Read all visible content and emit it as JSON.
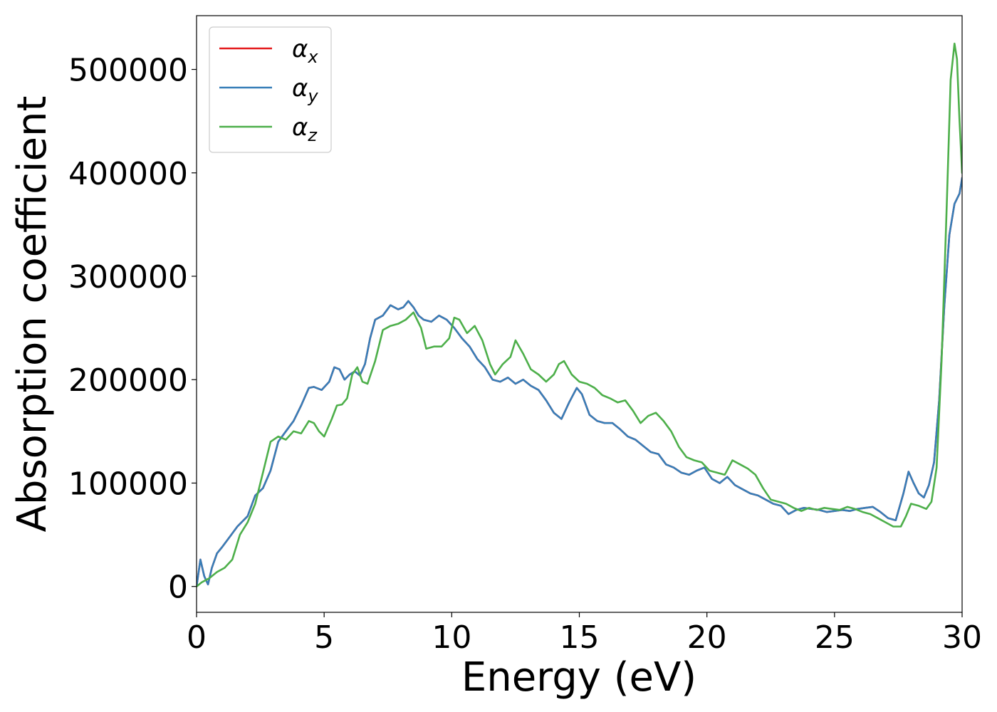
{
  "chart_data": {
    "type": "line",
    "title": "",
    "xlabel": "Energy (eV)",
    "ylabel": "Absorption coefficient",
    "xlim": [
      0,
      30
    ],
    "ylim": [
      -25000,
      552000
    ],
    "xticks": [
      0,
      5,
      10,
      15,
      20,
      25,
      30
    ],
    "xtick_labels": [
      "0",
      "5",
      "10",
      "15",
      "20",
      "25",
      "30"
    ],
    "yticks": [
      0,
      100000,
      200000,
      300000,
      400000,
      500000
    ],
    "ytick_labels": [
      "0",
      "100000",
      "200000",
      "300000",
      "400000",
      "500000"
    ],
    "grid": false,
    "legend_position": "top-left",
    "series": [
      {
        "name": "α_x",
        "label_symbol": "α",
        "label_sub": "x",
        "color": "#e41a1c",
        "x": [
          0,
          0.15,
          0.3,
          0.45,
          0.6,
          0.8,
          1.0,
          1.3,
          1.6,
          2.0,
          2.3,
          2.6,
          2.9,
          3.2,
          3.5,
          3.8,
          4.1,
          4.4,
          4.6,
          4.9,
          5.2,
          5.4,
          5.6,
          5.8,
          6.0,
          6.2,
          6.4,
          6.6,
          6.8,
          7.0,
          7.3,
          7.6,
          7.9,
          8.1,
          8.3,
          8.5,
          8.7,
          8.9,
          9.2,
          9.5,
          9.8,
          10.1,
          10.4,
          10.7,
          11.0,
          11.3,
          11.6,
          11.9,
          12.2,
          12.5,
          12.8,
          13.1,
          13.4,
          13.7,
          14.0,
          14.3,
          14.6,
          14.9,
          15.1,
          15.4,
          15.7,
          16.0,
          16.3,
          16.6,
          16.9,
          17.2,
          17.5,
          17.8,
          18.1,
          18.4,
          18.7,
          19.0,
          19.3,
          19.6,
          19.9,
          20.2,
          20.5,
          20.8,
          21.1,
          21.4,
          21.7,
          22.0,
          22.3,
          22.6,
          22.9,
          23.2,
          23.5,
          23.8,
          24.1,
          24.4,
          24.7,
          25.0,
          25.3,
          25.6,
          25.9,
          26.2,
          26.5,
          26.8,
          27.1,
          27.4,
          27.7,
          27.9,
          28.1,
          28.3,
          28.5,
          28.7,
          28.9,
          29.1,
          29.3,
          29.5,
          29.7,
          29.9,
          30.0
        ],
        "y": [
          0,
          26000,
          10000,
          2000,
          18000,
          32000,
          38000,
          48000,
          58000,
          68000,
          88000,
          95000,
          112000,
          140000,
          150000,
          160000,
          175000,
          192000,
          193000,
          190000,
          198000,
          212000,
          210000,
          200000,
          205000,
          208000,
          204000,
          215000,
          240000,
          258000,
          262000,
          272000,
          268000,
          270000,
          276000,
          270000,
          262000,
          258000,
          256000,
          262000,
          258000,
          250000,
          240000,
          232000,
          220000,
          212000,
          200000,
          198000,
          202000,
          196000,
          200000,
          194000,
          190000,
          180000,
          168000,
          162000,
          178000,
          192000,
          186000,
          166000,
          160000,
          158000,
          158000,
          152000,
          145000,
          142000,
          136000,
          130000,
          128000,
          118000,
          115000,
          110000,
          108000,
          112000,
          115000,
          104000,
          100000,
          106000,
          98000,
          94000,
          90000,
          88000,
          84000,
          80000,
          78000,
          70000,
          74000,
          76000,
          75000,
          74000,
          72000,
          73000,
          74000,
          73000,
          75000,
          76000,
          77000,
          72000,
          66000,
          64000,
          90000,
          111000,
          100000,
          90000,
          86000,
          98000,
          120000,
          180000,
          270000,
          340000,
          370000,
          380000,
          395000
        ]
      },
      {
        "name": "α_y",
        "label_symbol": "α",
        "label_sub": "y",
        "color": "#377eb8",
        "x": [
          0,
          0.15,
          0.3,
          0.45,
          0.6,
          0.8,
          1.0,
          1.3,
          1.6,
          2.0,
          2.3,
          2.6,
          2.9,
          3.2,
          3.5,
          3.8,
          4.1,
          4.4,
          4.6,
          4.9,
          5.2,
          5.4,
          5.6,
          5.8,
          6.0,
          6.2,
          6.4,
          6.6,
          6.8,
          7.0,
          7.3,
          7.6,
          7.9,
          8.1,
          8.3,
          8.5,
          8.7,
          8.9,
          9.2,
          9.5,
          9.8,
          10.1,
          10.4,
          10.7,
          11.0,
          11.3,
          11.6,
          11.9,
          12.2,
          12.5,
          12.8,
          13.1,
          13.4,
          13.7,
          14.0,
          14.3,
          14.6,
          14.9,
          15.1,
          15.4,
          15.7,
          16.0,
          16.3,
          16.6,
          16.9,
          17.2,
          17.5,
          17.8,
          18.1,
          18.4,
          18.7,
          19.0,
          19.3,
          19.6,
          19.9,
          20.2,
          20.5,
          20.8,
          21.1,
          21.4,
          21.7,
          22.0,
          22.3,
          22.6,
          22.9,
          23.2,
          23.5,
          23.8,
          24.1,
          24.4,
          24.7,
          25.0,
          25.3,
          25.6,
          25.9,
          26.2,
          26.5,
          26.8,
          27.1,
          27.4,
          27.7,
          27.9,
          28.1,
          28.3,
          28.5,
          28.7,
          28.9,
          29.1,
          29.3,
          29.5,
          29.7,
          29.9,
          30.0
        ],
        "y": [
          0,
          26000,
          10000,
          2000,
          18000,
          32000,
          38000,
          48000,
          58000,
          68000,
          88000,
          95000,
          112000,
          140000,
          150000,
          160000,
          175000,
          192000,
          193000,
          190000,
          198000,
          212000,
          210000,
          200000,
          205000,
          208000,
          204000,
          215000,
          240000,
          258000,
          262000,
          272000,
          268000,
          270000,
          276000,
          270000,
          262000,
          258000,
          256000,
          262000,
          258000,
          250000,
          240000,
          232000,
          220000,
          212000,
          200000,
          198000,
          202000,
          196000,
          200000,
          194000,
          190000,
          180000,
          168000,
          162000,
          178000,
          192000,
          186000,
          166000,
          160000,
          158000,
          158000,
          152000,
          145000,
          142000,
          136000,
          130000,
          128000,
          118000,
          115000,
          110000,
          108000,
          112000,
          115000,
          104000,
          100000,
          106000,
          98000,
          94000,
          90000,
          88000,
          84000,
          80000,
          78000,
          70000,
          74000,
          76000,
          75000,
          74000,
          72000,
          73000,
          74000,
          73000,
          75000,
          76000,
          77000,
          72000,
          66000,
          64000,
          90000,
          111000,
          100000,
          90000,
          86000,
          98000,
          120000,
          180000,
          270000,
          340000,
          370000,
          380000,
          395000
        ]
      },
      {
        "name": "α_z",
        "label_symbol": "α",
        "label_sub": "z",
        "color": "#4daf4a",
        "x": [
          0,
          0.2,
          0.5,
          0.8,
          1.1,
          1.4,
          1.7,
          2.0,
          2.3,
          2.6,
          2.9,
          3.2,
          3.5,
          3.8,
          4.1,
          4.4,
          4.6,
          4.8,
          5.0,
          5.3,
          5.5,
          5.7,
          5.9,
          6.1,
          6.3,
          6.5,
          6.7,
          7.0,
          7.3,
          7.6,
          7.9,
          8.2,
          8.5,
          8.8,
          9.0,
          9.3,
          9.6,
          9.9,
          10.1,
          10.3,
          10.6,
          10.9,
          11.2,
          11.5,
          11.7,
          12.0,
          12.3,
          12.5,
          12.8,
          13.1,
          13.4,
          13.7,
          14.0,
          14.2,
          14.4,
          14.7,
          15.0,
          15.3,
          15.6,
          15.9,
          16.2,
          16.5,
          16.8,
          17.1,
          17.4,
          17.7,
          18.0,
          18.3,
          18.6,
          18.9,
          19.2,
          19.5,
          19.8,
          20.1,
          20.4,
          20.7,
          21.0,
          21.3,
          21.6,
          21.9,
          22.2,
          22.5,
          22.8,
          23.1,
          23.4,
          23.7,
          24.0,
          24.3,
          24.6,
          24.9,
          25.2,
          25.5,
          25.8,
          26.1,
          26.4,
          26.7,
          27.0,
          27.3,
          27.6,
          27.8,
          28.0,
          28.3,
          28.6,
          28.8,
          29.0,
          29.2,
          29.4,
          29.55,
          29.7,
          29.8,
          29.9,
          30.0
        ],
        "y": [
          0,
          4000,
          8000,
          14000,
          18000,
          26000,
          50000,
          62000,
          80000,
          110000,
          140000,
          145000,
          142000,
          150000,
          148000,
          160000,
          158000,
          150000,
          145000,
          162000,
          175000,
          176000,
          182000,
          205000,
          212000,
          198000,
          196000,
          218000,
          248000,
          252000,
          254000,
          258000,
          265000,
          250000,
          230000,
          232000,
          232000,
          240000,
          260000,
          258000,
          245000,
          252000,
          238000,
          215000,
          205000,
          215000,
          222000,
          238000,
          225000,
          210000,
          205000,
          198000,
          205000,
          215000,
          218000,
          205000,
          198000,
          196000,
          192000,
          185000,
          182000,
          178000,
          180000,
          170000,
          158000,
          165000,
          168000,
          160000,
          150000,
          135000,
          125000,
          122000,
          120000,
          112000,
          110000,
          108000,
          122000,
          118000,
          114000,
          108000,
          95000,
          84000,
          82000,
          80000,
          76000,
          73000,
          76000,
          74000,
          76000,
          75000,
          74000,
          77000,
          75000,
          72000,
          70000,
          66000,
          62000,
          58000,
          58000,
          68000,
          80000,
          78000,
          75000,
          82000,
          115000,
          220000,
          370000,
          490000,
          525000,
          510000,
          450000,
          400000
        ]
      }
    ]
  }
}
